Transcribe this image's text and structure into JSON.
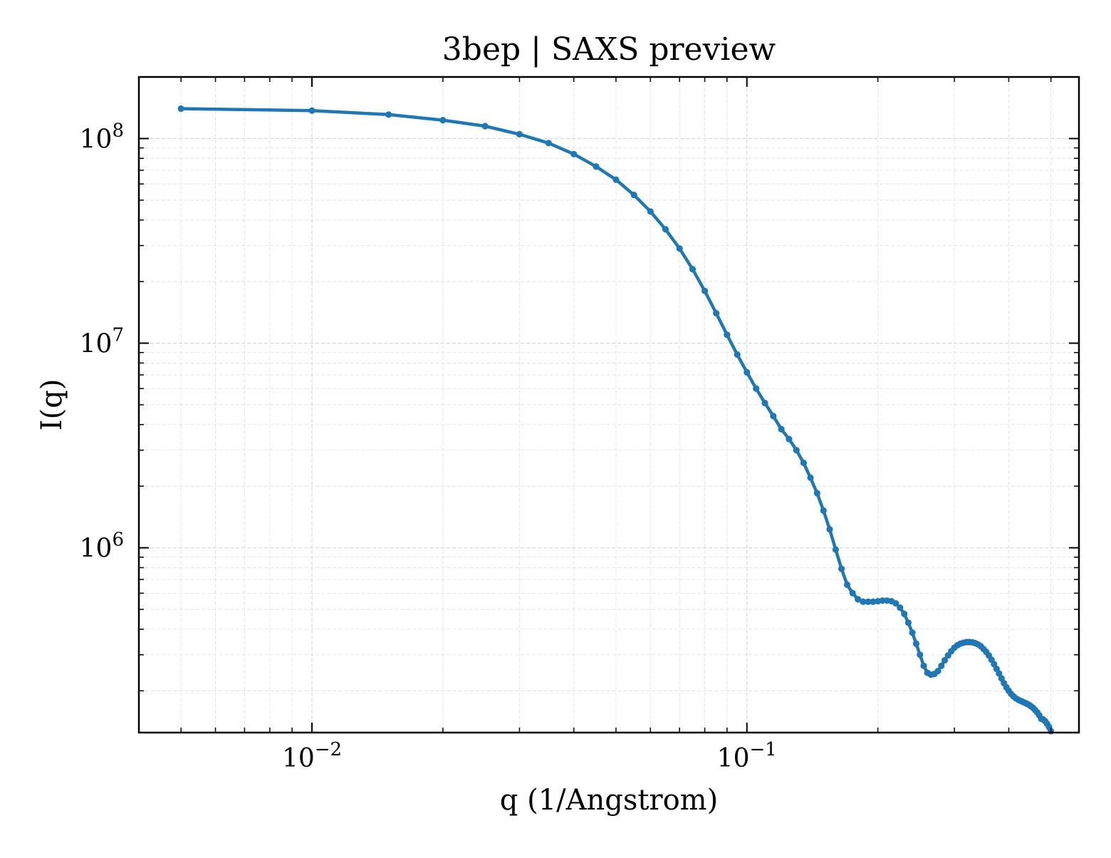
{
  "chart_data": {
    "type": "line",
    "title": "3bep | SAXS preview",
    "xlabel": "q (1/Angstrom)",
    "ylabel": "I(q)",
    "xscale": "log",
    "yscale": "log",
    "xlim": [
      0.004,
      0.58
    ],
    "ylim": [
      125000,
      200000000
    ],
    "grid": true,
    "legend": "none",
    "x_ticks": [
      {
        "value": 0.01,
        "base": "10",
        "exp": "−2"
      },
      {
        "value": 0.1,
        "base": "10",
        "exp": "−1"
      }
    ],
    "y_ticks": [
      {
        "value": 1000000,
        "base": "10",
        "exp": "6"
      },
      {
        "value": 10000000,
        "base": "10",
        "exp": "7"
      },
      {
        "value": 100000000,
        "base": "10",
        "exp": "8"
      }
    ],
    "series": [
      {
        "color": "#1f77b4",
        "marker": "circle",
        "x": [
          0.005,
          0.01,
          0.015,
          0.02,
          0.025,
          0.03,
          0.035,
          0.04,
          0.045,
          0.05,
          0.055,
          0.06,
          0.065,
          0.07,
          0.075,
          0.08,
          0.085,
          0.09,
          0.095,
          0.1,
          0.105,
          0.11,
          0.115,
          0.12,
          0.125,
          0.13,
          0.135,
          0.14,
          0.145,
          0.15,
          0.155,
          0.16,
          0.165,
          0.17,
          0.175,
          0.18,
          0.185,
          0.19,
          0.195,
          0.2,
          0.205,
          0.21,
          0.215,
          0.22,
          0.225,
          0.23,
          0.235,
          0.24,
          0.245,
          0.25,
          0.255,
          0.26,
          0.265,
          0.27,
          0.275,
          0.28,
          0.285,
          0.29,
          0.295,
          0.3,
          0.305,
          0.31,
          0.315,
          0.32,
          0.325,
          0.33,
          0.335,
          0.34,
          0.345,
          0.35,
          0.355,
          0.36,
          0.365,
          0.37,
          0.375,
          0.38,
          0.385,
          0.39,
          0.395,
          0.4,
          0.405,
          0.41,
          0.415,
          0.42,
          0.425,
          0.43,
          0.435,
          0.44,
          0.445,
          0.45,
          0.455,
          0.46,
          0.465,
          0.47,
          0.475,
          0.48,
          0.485,
          0.49,
          0.495,
          0.5
        ],
        "y": [
          140000000,
          137000000,
          131000000,
          123000000,
          115000000,
          105000000,
          95000000,
          84000000,
          73000000,
          63000000,
          53000000,
          44000000,
          36000000,
          29000000,
          23000000,
          18000000,
          14000000,
          11000000,
          8800000,
          7200000,
          6000000,
          5100000,
          4400000,
          3800000,
          3400000,
          3000000,
          2600000,
          2200000,
          1850000,
          1520000,
          1230000,
          980000,
          790000,
          660000,
          600000,
          560000,
          545000,
          545000,
          545000,
          548000,
          552000,
          552000,
          548000,
          535000,
          510000,
          475000,
          430000,
          385000,
          340000,
          300000,
          265000,
          245000,
          240000,
          242000,
          250000,
          265000,
          282000,
          298000,
          312000,
          325000,
          334000,
          340000,
          344000,
          346000,
          346000,
          345000,
          342000,
          337000,
          330000,
          320000,
          310000,
          298000,
          284000,
          270000,
          256000,
          243000,
          230000,
          218000,
          208000,
          200000,
          193000,
          188000,
          184000,
          181000,
          179000,
          177000,
          175000,
          173000,
          171000,
          168000,
          165000,
          161000,
          157000,
          152000,
          146000,
          145000,
          142000,
          138000,
          133000,
          127000
        ]
      }
    ]
  }
}
